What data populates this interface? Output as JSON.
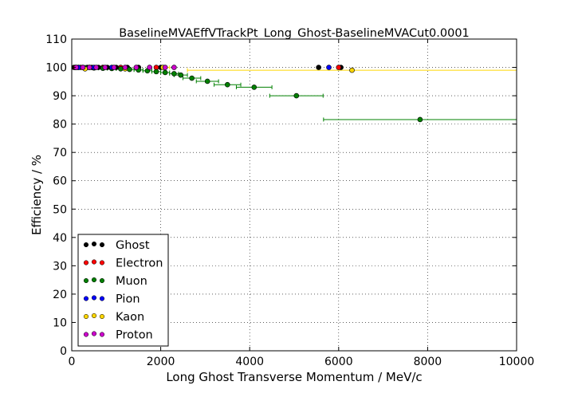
{
  "chart_data": {
    "type": "scatter",
    "title": "BaselineMVAEffVTrackPt_Long_Ghost-BaselineMVACut0.0001",
    "xlabel": "Long Ghost Transverse Momentum / MeV/c",
    "ylabel": "Efficiency / %",
    "xlim": [
      0,
      10000
    ],
    "ylim": [
      0,
      110
    ],
    "xticks": [
      "0",
      "2000",
      "4000",
      "6000",
      "8000",
      "10000"
    ],
    "yticks": [
      "0",
      "10",
      "20",
      "30",
      "40",
      "50",
      "60",
      "70",
      "80",
      "90",
      "100",
      "110"
    ],
    "grid": true,
    "legend_position": "lower-left",
    "series": [
      {
        "name": "Ghost",
        "color": "#000000",
        "points": [
          {
            "x": 50,
            "y": 100
          },
          {
            "x": 150,
            "y": 100
          },
          {
            "x": 250,
            "y": 100
          },
          {
            "x": 350,
            "y": 100
          },
          {
            "x": 450,
            "y": 100
          },
          {
            "x": 600,
            "y": 100
          },
          {
            "x": 800,
            "y": 100
          },
          {
            "x": 1000,
            "y": 100
          },
          {
            "x": 1250,
            "y": 100
          },
          {
            "x": 1500,
            "y": 100
          },
          {
            "x": 2000,
            "y": 100
          },
          {
            "x": 5550,
            "y": 100
          },
          {
            "x": 6050,
            "y": 100
          }
        ]
      },
      {
        "name": "Electron",
        "color": "#ff0000",
        "points": [
          {
            "x": 80,
            "y": 100
          },
          {
            "x": 200,
            "y": 100
          },
          {
            "x": 400,
            "y": 100
          },
          {
            "x": 700,
            "y": 100
          },
          {
            "x": 1100,
            "y": 100
          },
          {
            "x": 1900,
            "y": 100
          },
          {
            "x": 6000,
            "y": 100
          }
        ]
      },
      {
        "name": "Muon",
        "color": "#008000",
        "points": [
          {
            "x": 100,
            "y": 100,
            "xerr": 100
          },
          {
            "x": 300,
            "y": 99.9,
            "xerr": 100
          },
          {
            "x": 500,
            "y": 99.8,
            "xerr": 100
          },
          {
            "x": 700,
            "y": 99.7,
            "xerr": 100
          },
          {
            "x": 900,
            "y": 99.6,
            "xerr": 100
          },
          {
            "x": 1100,
            "y": 99.5,
            "xerr": 100
          },
          {
            "x": 1300,
            "y": 99.3,
            "xerr": 100
          },
          {
            "x": 1500,
            "y": 99.1,
            "xerr": 100
          },
          {
            "x": 1700,
            "y": 98.8,
            "xerr": 100
          },
          {
            "x": 1900,
            "y": 98.5,
            "xerr": 100
          },
          {
            "x": 2100,
            "y": 98.2,
            "xerr": 100
          },
          {
            "x": 2300,
            "y": 97.8,
            "xerr": 100
          },
          {
            "x": 2450,
            "y": 97.3,
            "xerr": 150
          },
          {
            "x": 2700,
            "y": 96.2,
            "xerr": 200
          },
          {
            "x": 3050,
            "y": 95.1,
            "xerr": 250
          },
          {
            "x": 3500,
            "y": 93.9,
            "xerr": 300
          },
          {
            "x": 4100,
            "y": 93.0,
            "xerr": 400
          },
          {
            "x": 5050,
            "y": 90.0,
            "xerr": 600
          },
          {
            "x": 7830,
            "y": 81.6,
            "xerr": 2170
          }
        ]
      },
      {
        "name": "Pion",
        "color": "#0000ff",
        "points": [
          {
            "x": 150,
            "y": 100
          },
          {
            "x": 500,
            "y": 100
          },
          {
            "x": 900,
            "y": 100
          },
          {
            "x": 5780,
            "y": 100
          }
        ]
      },
      {
        "name": "Kaon",
        "color": "#ffd700",
        "points": [
          {
            "x": 300,
            "y": 99.5
          },
          {
            "x": 1200,
            "y": 99.5
          },
          {
            "x": 2050,
            "y": 100,
            "xerr": 150
          },
          {
            "x": 6300,
            "y": 99.0,
            "xerr": 3700
          }
        ]
      },
      {
        "name": "Proton",
        "color": "#cc00cc",
        "points": [
          {
            "x": 100,
            "y": 100
          },
          {
            "x": 250,
            "y": 100
          },
          {
            "x": 400,
            "y": 100
          },
          {
            "x": 550,
            "y": 100
          },
          {
            "x": 750,
            "y": 100
          },
          {
            "x": 950,
            "y": 100
          },
          {
            "x": 1200,
            "y": 100
          },
          {
            "x": 1450,
            "y": 100
          },
          {
            "x": 1750,
            "y": 100
          },
          {
            "x": 2100,
            "y": 100
          },
          {
            "x": 2300,
            "y": 100
          }
        ]
      }
    ]
  }
}
